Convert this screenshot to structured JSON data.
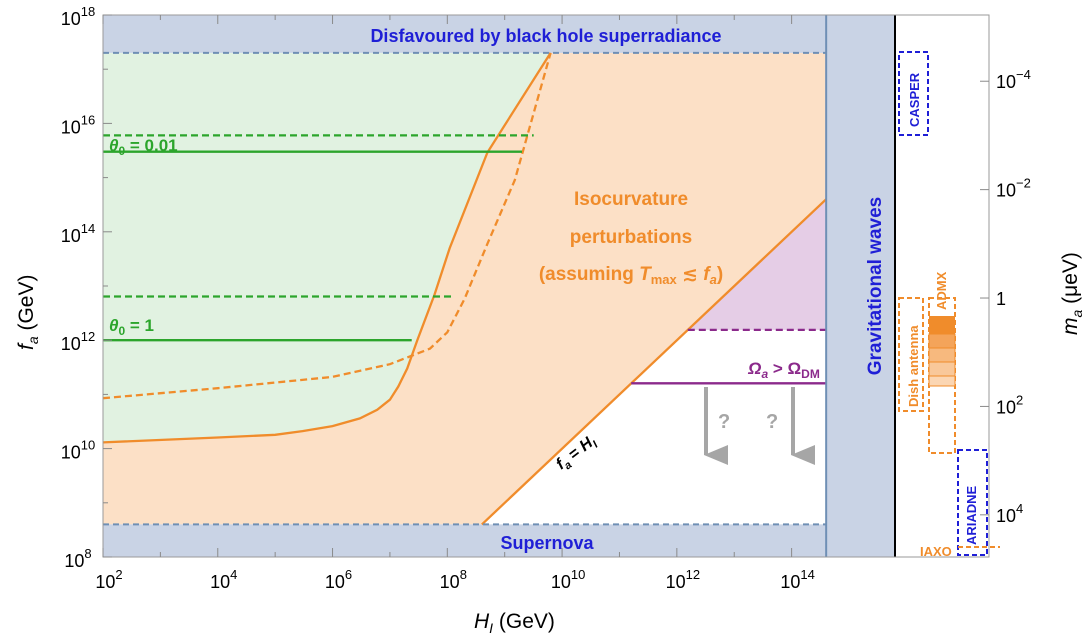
{
  "chart_data": {
    "type": "area",
    "x_scale": "log",
    "y_scale": "log",
    "x_range": [
      100,
      1000000000000000.0
    ],
    "y_range": [
      100000000.0,
      1e+18
    ],
    "xlabel": {
      "main": "H",
      "sub": "I",
      "unit": " (GeV)"
    },
    "ylabel": {
      "main": "f",
      "sub": "a",
      "unit": " (GeV)"
    },
    "right_axis": {
      "label": {
        "main": "m",
        "sub": "a",
        "unit": " (μeV)"
      },
      "ticks": [
        {
          "base": "10",
          "exp": "−4",
          "f_a": 6e+16
        },
        {
          "base": "10",
          "exp": "−2",
          "f_a": 600000000000000.0
        },
        {
          "base": "1",
          "exp": "",
          "f_a": 6000000000000.0
        },
        {
          "base": "10",
          "exp": "2",
          "f_a": 60000000000.0
        },
        {
          "base": "10",
          "exp": "4",
          "f_a": 600000000.0
        }
      ]
    },
    "x_ticks": [
      {
        "value": 100,
        "base": "10",
        "exp": "2"
      },
      {
        "value": 10000.0,
        "base": "10",
        "exp": "4"
      },
      {
        "value": 1000000.0,
        "base": "10",
        "exp": "6"
      },
      {
        "value": 100000000.0,
        "base": "10",
        "exp": "8"
      },
      {
        "value": 10000000000.0,
        "base": "10",
        "exp": "10"
      },
      {
        "value": 1000000000000.0,
        "base": "10",
        "exp": "12"
      },
      {
        "value": 100000000000000.0,
        "base": "10",
        "exp": "14"
      }
    ],
    "y_ticks": [
      {
        "value": 100000000.0,
        "base": "10",
        "exp": "8"
      },
      {
        "value": 10000000000.0,
        "base": "10",
        "exp": "10"
      },
      {
        "value": 1000000000000.0,
        "base": "10",
        "exp": "12"
      },
      {
        "value": 100000000000000.0,
        "base": "10",
        "exp": "14"
      },
      {
        "value": 1e+16,
        "base": "10",
        "exp": "16"
      },
      {
        "value": 1e+18,
        "base": "10",
        "exp": "18"
      }
    ],
    "regions": [
      {
        "name": "black-hole-superradiance",
        "label": "Disfavoured by black hole superradiance",
        "color": "#c9d3e5",
        "f_a_min": 2e+17
      },
      {
        "name": "supernova",
        "label": "Supernova",
        "color": "#c9d3e5",
        "f_a_max": 400000000.0
      },
      {
        "name": "gravitational-waves",
        "label": "Gravitational waves",
        "color": "#c9d3e5",
        "H_I_min": 400000000000000.0
      },
      {
        "name": "isocurvature",
        "label_lines": [
          "Isocurvature",
          "perturbations"
        ],
        "label_line3": {
          "pre": "(assuming ",
          "T": "T",
          "sub": "max",
          "post": " ≲ ",
          "f": "f",
          "fsub": "a",
          "close": ")"
        },
        "color": "#fce0c6"
      },
      {
        "name": "overproduction",
        "color": "#e5cde6"
      }
    ],
    "series": [
      {
        "name": "isocurvature-bound-solid",
        "style": "solid",
        "color": "#f08c2b",
        "points": [
          [
            100,
            13000000000.0
          ],
          [
            10000.0,
            16000000000.0
          ],
          [
            100000.0,
            18000000000.0
          ],
          [
            300000.0,
            21000000000.0
          ],
          [
            1000000.0,
            26000000000.0
          ],
          [
            3000000.0,
            36000000000.0
          ],
          [
            6000000.0,
            52000000000.0
          ],
          [
            10000000.0,
            80000000000.0
          ],
          [
            14000000.0,
            140000000000.0
          ],
          [
            20000000.0,
            300000000000.0
          ],
          [
            30000000.0,
            1000000000000.0
          ],
          [
            60000000.0,
            7000000000000.0
          ],
          [
            110000000.0,
            50000000000000.0
          ],
          [
            500000000.0,
            2900000000000000.0
          ],
          [
            6300000000.0,
            2e+17
          ]
        ]
      },
      {
        "name": "isocurvature-bound-dashed",
        "style": "dashed",
        "color": "#f08c2b",
        "points": [
          [
            100,
            85000000000.0
          ],
          [
            10000.0,
            130000000000.0
          ],
          [
            1000000.0,
            210000000000.0
          ],
          [
            10000000.0,
            360000000000.0
          ],
          [
            50000000.0,
            700000000000.0
          ],
          [
            100000000.0,
            1400000000000.0
          ],
          [
            200000000.0,
            5800000000000.0
          ],
          [
            500000000.0,
            60000000000000.0
          ],
          [
            1500000000.0,
            900000000000000.0
          ],
          [
            6300000000.0,
            2e+17
          ]
        ]
      },
      {
        "name": "f_a-equals-H_I",
        "style": "solid",
        "color": "#f08c2b",
        "points": [
          [
            400000000.0,
            400000000.0
          ],
          [
            400000000000000.0,
            400000000000000.0
          ]
        ]
      },
      {
        "name": "omega-dm-solid",
        "style": "solid",
        "color": "#8b2a8b",
        "points": [
          [
            160000000000.0,
            160000000000.0
          ],
          [
            400000000000000.0,
            160000000000.0
          ]
        ]
      },
      {
        "name": "omega-dm-dashed",
        "style": "dashed",
        "color": "#8b2a8b",
        "points": [
          [
            1550000000000.0,
            1550000000000.0
          ],
          [
            400000000000000.0,
            1550000000000.0
          ]
        ]
      },
      {
        "name": "theta0-0.01-solid",
        "style": "solid",
        "color": "#2ca52c",
        "points": [
          [
            100,
            3000000000000000.0
          ],
          [
            2000000000.0,
            3000000000000000.0
          ]
        ]
      },
      {
        "name": "theta0-0.01-dashed",
        "style": "dashed",
        "color": "#2ca52c",
        "points": [
          [
            100,
            6000000000000000.0
          ],
          [
            3200000000.0,
            6000000000000000.0
          ]
        ]
      },
      {
        "name": "theta0-1-solid",
        "style": "solid",
        "color": "#2ca52c",
        "points": [
          [
            100,
            1000000000000.0
          ],
          [
            24000000.0,
            1000000000000.0
          ]
        ]
      },
      {
        "name": "theta0-1-dashed",
        "style": "dashed",
        "color": "#2ca52c",
        "points": [
          [
            100,
            6400000000000.0
          ],
          [
            120000000.0,
            6400000000000.0
          ]
        ]
      }
    ],
    "annotations": {
      "theta_small": {
        "symbol": "θ",
        "sub": "0",
        "rest": " = 0.01"
      },
      "theta_one": {
        "symbol": "θ",
        "sub": "0",
        "rest": " = 1"
      },
      "omega": {
        "symbol": "Ω",
        "sub": "a",
        "op": " > ",
        "symbol2": "Ω",
        "sub2": "DM"
      },
      "diag": {
        "f": "f",
        "fsub": "a",
        "op": " = ",
        "H": "H",
        "Hsub": "I"
      },
      "question_marks": [
        "?",
        "?"
      ]
    },
    "experiments": [
      {
        "name": "CASPER",
        "color": "#1f1fd6",
        "style": "dashed"
      },
      {
        "name": "Dish antenna",
        "color": "#f08c2b",
        "style": "dashed"
      },
      {
        "name": "ADMX",
        "color": "#f08c2b",
        "style": "filled"
      },
      {
        "name": "ARIADNE",
        "color": "#1f1fd6",
        "style": "dashed"
      },
      {
        "name": "IAXO",
        "color": "#f08c2b",
        "style": "dashed"
      }
    ],
    "colors": {
      "green_fill": "#e1f2e1",
      "green_line": "#2ca52c",
      "orange_fill": "#fce0c6",
      "orange_line": "#f08c2b",
      "purple_fill": "#e5cde6",
      "purple_line": "#8b2a8b",
      "grey_band": "#c9d3e5",
      "band_edge": "#6f8fb5",
      "blue_text": "#1f1fd6",
      "arrow": "#a6a6a6"
    }
  }
}
